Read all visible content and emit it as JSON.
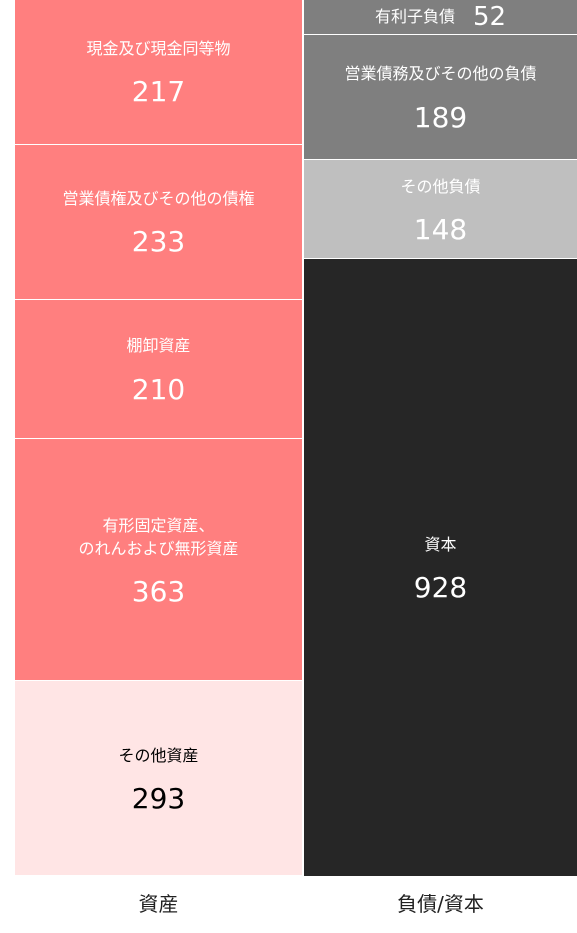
{
  "chart_data": {
    "type": "stacked-column",
    "categories": [
      "資産",
      "負債/資本"
    ],
    "series": [
      {
        "name": "現金及び現金同等物",
        "color": "#ff7f7f",
        "values": [
          217,
          null
        ]
      },
      {
        "name": "営業債権及びその他の債権",
        "color": "#ff7f7f",
        "values": [
          233,
          null
        ]
      },
      {
        "name": "棚卸資産",
        "color": "#ff7f7f",
        "values": [
          210,
          null
        ]
      },
      {
        "name": "有形固定資産、\nのれんおよび無形資産",
        "color": "#ff7f7f",
        "values": [
          363,
          null
        ]
      },
      {
        "name": "その他資産",
        "color": "#ffe5e5",
        "values": [
          293,
          null
        ]
      },
      {
        "name": "有利子負債",
        "color": "#7f7f7f",
        "values": [
          null,
          52
        ]
      },
      {
        "name": "営業債務及びその他の負債",
        "color": "#7f7f7f",
        "values": [
          null,
          189
        ]
      },
      {
        "name": "その他負債",
        "color": "#bfbfbf",
        "values": [
          null,
          148
        ]
      },
      {
        "name": "資本",
        "color": "#262626",
        "values": [
          null,
          928
        ]
      }
    ]
  }
}
